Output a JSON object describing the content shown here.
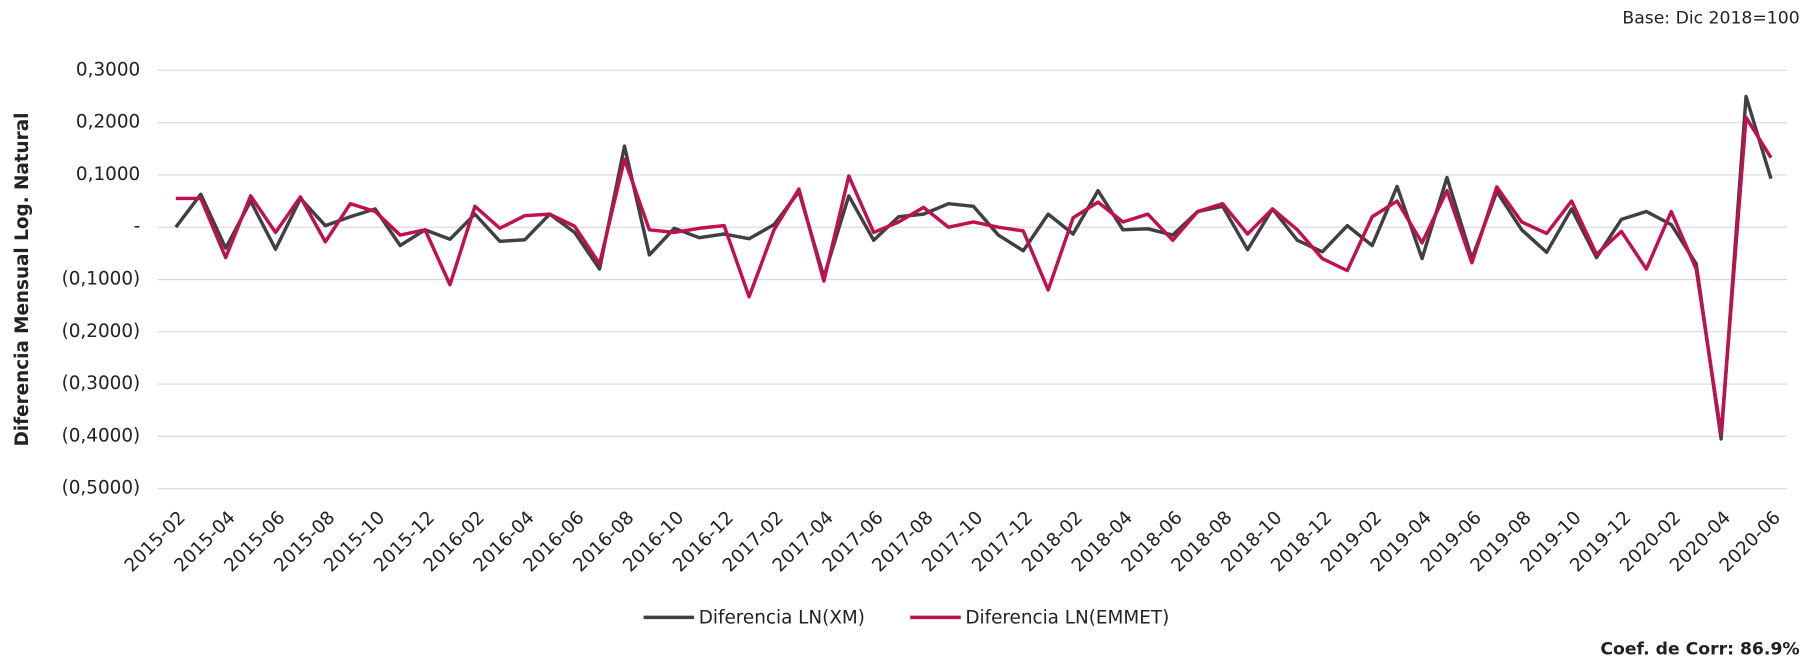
{
  "chart_data": {
    "type": "line",
    "annotations": [
      "Base: Dic 2018=100",
      "Coef. de Corr: 86.9%"
    ],
    "y_label": "Diferencia Mensual Log. Natural",
    "categories": [
      "2015-02",
      null,
      "2015-04",
      null,
      "2015-06",
      null,
      "2015-08",
      null,
      "2015-10",
      null,
      "2015-12",
      null,
      "2016-02",
      null,
      "2016-04",
      null,
      "2016-06",
      null,
      "2016-08",
      null,
      "2016-10",
      null,
      "2016-12",
      null,
      "2017-02",
      null,
      "2017-04",
      null,
      "2017-06",
      null,
      "2017-08",
      null,
      "2017-10",
      null,
      "2017-12",
      null,
      "2018-02",
      null,
      "2018-04",
      null,
      "2018-06",
      null,
      "2018-08",
      null,
      "2018-10",
      null,
      "2018-12",
      null,
      "2019-02",
      null,
      "2019-04",
      null,
      "2019-06",
      null,
      "2019-08",
      null,
      "2019-10",
      null,
      "2019-12",
      null,
      "2020-02",
      null,
      "2020-04",
      null,
      "2020-06"
    ],
    "series": [
      {
        "name": "Diferencia LN(XM)",
        "color": "#404040",
        "values": [
          0,
          0.063,
          -0.04,
          0.05,
          -0.042,
          0.055,
          0.003,
          0.02,
          0.035,
          -0.035,
          -0.005,
          -0.023,
          0.025,
          -0.027,
          -0.024,
          0.025,
          -0.01,
          -0.08,
          0.155,
          -0.053,
          -0.002,
          -0.02,
          -0.013,
          -0.022,
          0.005,
          0.068,
          -0.095,
          0.06,
          -0.025,
          0.02,
          0.025,
          0.045,
          0.04,
          -0.015,
          -0.045,
          0.025,
          -0.013,
          0.07,
          -0.005,
          -0.003,
          -0.015,
          0.03,
          0.04,
          -0.043,
          0.035,
          -0.025,
          -0.047,
          0.003,
          -0.035,
          0.078,
          -0.06,
          0.095,
          -0.06,
          0.068,
          -0.005,
          -0.048,
          0.035,
          -0.058,
          0.015,
          0.03,
          0.005,
          -0.07,
          -0.405,
          0.25,
          0.093
        ]
      },
      {
        "name": "Diferencia LN(EMMET)",
        "color": "#c0104f",
        "values": [
          0.055,
          0.055,
          -0.058,
          0.06,
          -0.01,
          0.058,
          -0.028,
          0.045,
          0.03,
          -0.015,
          -0.005,
          -0.11,
          0.04,
          -0.002,
          0.022,
          0.025,
          0.002,
          -0.07,
          0.13,
          -0.005,
          -0.01,
          -0.002,
          0.003,
          -0.133,
          -0.005,
          0.073,
          -0.103,
          0.098,
          -0.01,
          0.01,
          0.038,
          0,
          0.01,
          0,
          -0.007,
          -0.12,
          0.018,
          0.048,
          0.01,
          0.025,
          -0.025,
          0.03,
          0.045,
          -0.013,
          0.035,
          -0.005,
          -0.06,
          -0.083,
          0.02,
          0.05,
          -0.03,
          0.07,
          -0.068,
          0.077,
          0.01,
          -0.012,
          0.05,
          -0.052,
          -0.008,
          -0.08,
          0.03,
          -0.08,
          -0.395,
          0.21,
          0.133
        ]
      }
    ],
    "ylim": [
      -0.5,
      0.3
    ],
    "yticks": [
      {
        "value": 0.3,
        "label": "0,3000"
      },
      {
        "value": 0.2,
        "label": "0,2000"
      },
      {
        "value": 0.1,
        "label": "0,1000"
      },
      {
        "value": 0,
        "label": "-"
      },
      {
        "value": -0.1,
        "label": "(0,1000)"
      },
      {
        "value": -0.2,
        "label": "(0,2000)"
      },
      {
        "value": -0.3,
        "label": "(0,3000)"
      },
      {
        "value": -0.4,
        "label": "(0,4000)"
      },
      {
        "value": -0.5,
        "label": "(0,5000)"
      }
    ],
    "grid": true,
    "legend": "bottom"
  }
}
